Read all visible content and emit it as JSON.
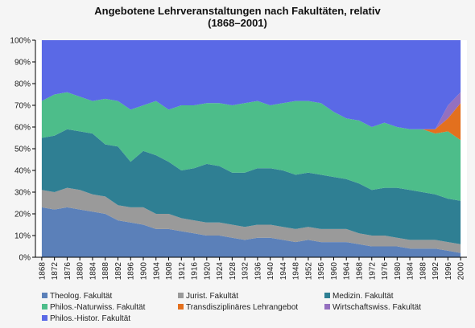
{
  "chart_data": {
    "type": "area",
    "stacked": true,
    "normalized": true,
    "title_lines": [
      "Angebotene Lehrveranstaltungen nach Fakultäten, relativ",
      "(1868–2001)"
    ],
    "xlabel": "",
    "ylabel": "",
    "ylim": [
      0,
      100
    ],
    "y_ticks": [
      "0%",
      "10%",
      "20%",
      "30%",
      "40%",
      "50%",
      "60%",
      "70%",
      "80%",
      "90%",
      "100%"
    ],
    "x_ticks": [
      "1868",
      "1872",
      "1876",
      "1880",
      "1884",
      "1888",
      "1892",
      "1896",
      "1900",
      "1904",
      "1908",
      "1912",
      "1916",
      "1920",
      "1924",
      "1928",
      "1932",
      "1936",
      "1940",
      "1944",
      "1948",
      "1952",
      "1956",
      "1960",
      "1964",
      "1968",
      "1972",
      "1976",
      "1980",
      "1984",
      "1988",
      "1992",
      "1996",
      "2000"
    ],
    "grid": false,
    "legend_position": "bottom",
    "x": [
      1868,
      1872,
      1876,
      1880,
      1884,
      1888,
      1892,
      1896,
      1900,
      1904,
      1908,
      1912,
      1916,
      1920,
      1924,
      1928,
      1932,
      1936,
      1940,
      1944,
      1948,
      1952,
      1956,
      1960,
      1964,
      1968,
      1972,
      1976,
      1980,
      1984,
      1988,
      1992,
      1996,
      2000
    ],
    "series": [
      {
        "name": "Theolog. Fakultät",
        "color": "#5b80b9",
        "values": [
          23,
          22,
          23,
          22,
          21,
          20,
          17,
          16,
          15,
          13,
          13,
          12,
          11,
          10,
          10,
          9,
          8,
          9,
          9,
          8,
          7,
          8,
          7,
          7,
          7,
          6,
          5,
          5,
          5,
          4,
          4,
          4,
          3,
          2
        ]
      },
      {
        "name": "Jurist. Fakultät",
        "color": "#9a9a9a",
        "values": [
          8,
          8,
          9,
          9,
          8,
          8,
          7,
          7,
          8,
          7,
          7,
          6,
          6,
          6,
          6,
          6,
          6,
          6,
          6,
          6,
          6,
          6,
          6,
          6,
          6,
          5,
          5,
          5,
          4,
          4,
          4,
          4,
          4,
          4
        ]
      },
      {
        "name": "Medizin. Fakultät",
        "color": "#2f7f93",
        "values": [
          24,
          26,
          27,
          27,
          28,
          24,
          27,
          21,
          26,
          27,
          24,
          22,
          24,
          27,
          26,
          24,
          25,
          26,
          26,
          26,
          25,
          25,
          25,
          24,
          23,
          23,
          21,
          22,
          23,
          23,
          22,
          21,
          20,
          20
        ]
      },
      {
        "name": "Philos.-Naturwiss. Fakultät",
        "color": "#4dbd8a",
        "values": [
          17,
          19,
          17,
          16,
          15,
          21,
          21,
          24,
          21,
          25,
          24,
          30,
          29,
          28,
          29,
          31,
          32,
          31,
          29,
          31,
          34,
          33,
          33,
          30,
          28,
          29,
          29,
          30,
          28,
          28,
          29,
          28,
          31,
          28
        ]
      },
      {
        "name": "Transdisziplinäres Lehrangebot",
        "color": "#e3701e",
        "values": [
          0,
          0,
          0,
          0,
          0,
          0,
          0,
          0,
          0,
          0,
          0,
          0,
          0,
          0,
          0,
          0,
          0,
          0,
          0,
          0,
          0,
          0,
          0,
          0,
          0,
          0,
          0,
          0,
          0,
          0,
          0,
          2,
          6,
          17
        ]
      },
      {
        "name": "Wirtschaftswiss. Fakultät",
        "color": "#9470bf",
        "values": [
          0,
          0,
          0,
          0,
          0,
          0,
          0,
          0,
          0,
          0,
          0,
          0,
          0,
          0,
          0,
          0,
          0,
          0,
          0,
          0,
          0,
          0,
          0,
          0,
          0,
          0,
          0,
          0,
          0,
          0,
          0,
          0,
          6,
          5
        ]
      },
      {
        "name": "Philos.-Histor. Fakultät",
        "color": "#5a69e6",
        "values": [
          28,
          25,
          24,
          26,
          28,
          27,
          28,
          32,
          30,
          28,
          32,
          30,
          30,
          29,
          29,
          30,
          29,
          28,
          30,
          29,
          28,
          28,
          29,
          33,
          36,
          37,
          40,
          38,
          40,
          41,
          41,
          41,
          30,
          24
        ]
      }
    ]
  }
}
